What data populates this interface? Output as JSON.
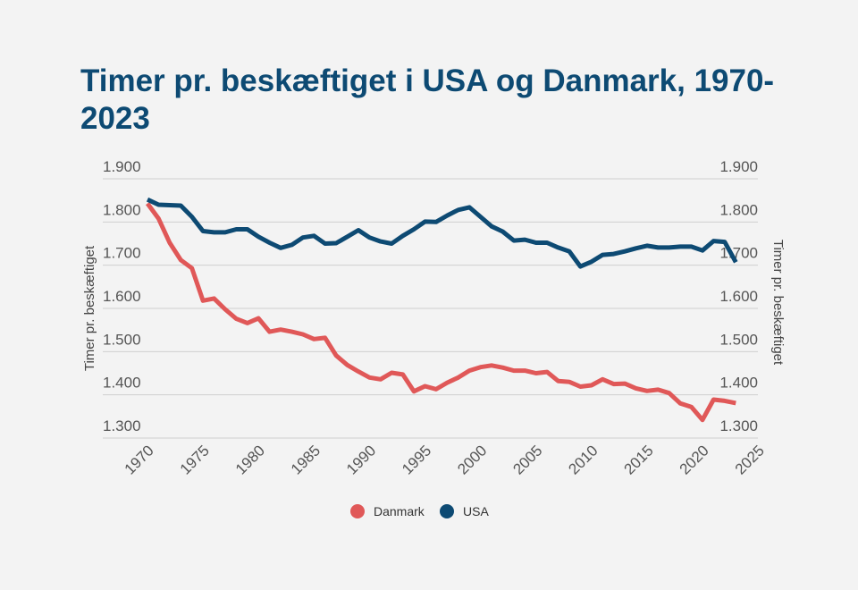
{
  "title": "Timer pr. beskæftiget i USA og Danmark, 1970-2023",
  "chart_data": {
    "type": "line",
    "title": "Timer pr. beskæftiget i USA og Danmark, 1970-2023",
    "ylabel": "Timer pr. beskæftiget",
    "ylabel_right": "Timer pr. beskæftiget",
    "xlim": [
      1970,
      2025
    ],
    "ylim": [
      1300,
      1900
    ],
    "x_ticks": [
      "1970",
      "1975",
      "1980",
      "1985",
      "1990",
      "1995",
      "2000",
      "2005",
      "2010",
      "2015",
      "2020",
      "2025"
    ],
    "y_ticks": [
      "1.300",
      "1.400",
      "1.500",
      "1.600",
      "1.700",
      "1.800",
      "1.900"
    ],
    "grid": true,
    "legend_position": "bottom",
    "x": [
      1970,
      1971,
      1972,
      1973,
      1974,
      1975,
      1976,
      1977,
      1978,
      1979,
      1980,
      1981,
      1982,
      1983,
      1984,
      1985,
      1986,
      1987,
      1988,
      1989,
      1990,
      1991,
      1992,
      1993,
      1994,
      1995,
      1996,
      1997,
      1998,
      1999,
      2000,
      2001,
      2002,
      2003,
      2004,
      2005,
      2006,
      2007,
      2008,
      2009,
      2010,
      2011,
      2012,
      2013,
      2014,
      2015,
      2016,
      2017,
      2018,
      2019,
      2020,
      2021,
      2022,
      2023
    ],
    "series": [
      {
        "name": "Danmark",
        "color": "#e05858",
        "values": [
          1843,
          1808,
          1752,
          1712,
          1693,
          1618,
          1623,
          1598,
          1576,
          1566,
          1577,
          1546,
          1551,
          1546,
          1540,
          1529,
          1532,
          1491,
          1469,
          1454,
          1440,
          1436,
          1451,
          1447,
          1408,
          1420,
          1413,
          1428,
          1440,
          1456,
          1464,
          1468,
          1463,
          1456,
          1456,
          1450,
          1453,
          1432,
          1430,
          1419,
          1422,
          1436,
          1425,
          1426,
          1415,
          1409,
          1412,
          1404,
          1380,
          1372,
          1342,
          1389,
          1386,
          1381
        ]
      },
      {
        "name": "USA",
        "color": "#0d4a73",
        "values": [
          1852,
          1840,
          1839,
          1838,
          1812,
          1779,
          1776,
          1776,
          1783,
          1783,
          1766,
          1752,
          1740,
          1747,
          1764,
          1768,
          1750,
          1751,
          1766,
          1781,
          1764,
          1755,
          1750,
          1768,
          1783,
          1801,
          1800,
          1815,
          1828,
          1834,
          1812,
          1790,
          1778,
          1757,
          1759,
          1752,
          1752,
          1741,
          1732,
          1697,
          1708,
          1724,
          1726,
          1732,
          1739,
          1745,
          1741,
          1741,
          1743,
          1743,
          1734,
          1756,
          1754,
          1707
        ]
      }
    ]
  }
}
